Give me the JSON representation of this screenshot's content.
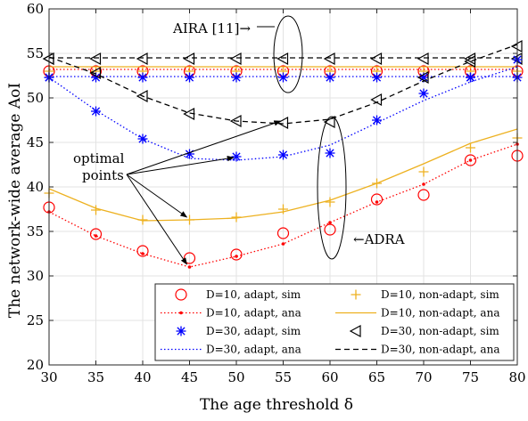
{
  "chart_data": {
    "type": "line",
    "xlabel": "The age threshold δ",
    "ylabel": "The network-wide average AoI",
    "xlim": [
      30,
      80
    ],
    "ylim": [
      20,
      60
    ],
    "grid": true,
    "legend_position": "bottom-right",
    "x_ticks": [
      30,
      35,
      40,
      45,
      50,
      55,
      60,
      65,
      70,
      75,
      80
    ],
    "y_ticks": [
      20,
      25,
      30,
      35,
      40,
      45,
      50,
      55,
      60
    ],
    "x": [
      30,
      35,
      40,
      45,
      50,
      55,
      60,
      65,
      70,
      75,
      80
    ],
    "series": [
      {
        "name": "D=10, adapt, sim",
        "style": "marker",
        "marker": "circle",
        "color": "#ff0000",
        "values": [
          37.7,
          34.7,
          32.8,
          32.0,
          32.4,
          34.8,
          35.2,
          38.6,
          39.1,
          43.0,
          43.5
        ]
      },
      {
        "name": "D=10, non-adapt, sim",
        "style": "marker",
        "marker": "plus",
        "color": "#edb120",
        "values": [
          39.3,
          37.4,
          36.3,
          36.3,
          36.6,
          37.5,
          38.3,
          40.4,
          41.7,
          44.4,
          45.5
        ]
      },
      {
        "name": "D=10, adapt, ana",
        "style": "dotted",
        "marker": "dot",
        "color": "#ff0000",
        "values": [
          37.2,
          34.5,
          32.5,
          31.0,
          32.2,
          33.6,
          36.0,
          38.3,
          40.3,
          43.0,
          44.8
        ]
      },
      {
        "name": "D=10, non-adapt, ana",
        "style": "solid",
        "marker": "none",
        "color": "#edb120",
        "values": [
          39.8,
          37.6,
          36.2,
          36.3,
          36.5,
          37.2,
          38.5,
          40.4,
          42.6,
          44.9,
          46.5
        ]
      },
      {
        "name": "D=30, adapt, sim",
        "style": "marker",
        "marker": "asterisk",
        "color": "#0000ff",
        "values": [
          52.3,
          48.5,
          45.4,
          43.7,
          43.4,
          43.6,
          43.8,
          47.5,
          50.5,
          52.3,
          54.3
        ]
      },
      {
        "name": "D=30, non-adapt, sim",
        "style": "marker",
        "marker": "triangle-left",
        "color": "#000000",
        "values": [
          54.4,
          52.8,
          50.2,
          48.2,
          47.4,
          47.2,
          47.3,
          49.8,
          52.3,
          54.1,
          55.8
        ]
      },
      {
        "name": "D=30, adapt, ana",
        "style": "dotted",
        "marker": "none",
        "color": "#0000ff",
        "values": [
          52.3,
          48.6,
          45.4,
          43.2,
          43.0,
          43.4,
          44.7,
          47.2,
          49.7,
          51.8,
          53.5
        ]
      },
      {
        "name": "D=30, non-adapt, ana",
        "style": "dashed",
        "marker": "none",
        "color": "#000000",
        "values": [
          54.6,
          52.7,
          50.2,
          48.3,
          47.4,
          47.1,
          47.6,
          49.5,
          51.9,
          54.1,
          56.0
        ]
      }
    ],
    "flat_series": [
      {
        "name": "AIRA adapt sim",
        "marker": "circle",
        "color": "#ff0000",
        "value": 53.0
      },
      {
        "name": "AIRA non-adapt sim",
        "marker": "plus",
        "color": "#edb120",
        "value": 53.0
      },
      {
        "name": "AIRA adapt ana",
        "color": "#ff0000",
        "style": "dotted",
        "value": 53.2
      },
      {
        "name": "AIRA non-adapt ana",
        "color": "#edb120",
        "style": "solid",
        "value": 53.5
      },
      {
        "name": "AIRA D30 adapt sim",
        "marker": "asterisk",
        "color": "#0000ff",
        "value": 52.3
      },
      {
        "name": "AIRA D30 adapt ana",
        "color": "#0000ff",
        "style": "dotted",
        "value": 52.4
      },
      {
        "name": "AIRA D30 non-adapt sim",
        "marker": "triangle-left",
        "color": "#000000",
        "value": 54.4
      },
      {
        "name": "AIRA D30 non-adapt ana",
        "color": "#000000",
        "style": "dashed",
        "value": 54.5
      }
    ],
    "annotations": {
      "aira": "AIRA [11]→",
      "adra": "←ADRA",
      "optimal_line1": "optimal",
      "optimal_line2": "points"
    },
    "optimal_points": [
      {
        "x": 45,
        "y": 31.0
      },
      {
        "x": 45,
        "y": 36.3
      },
      {
        "x": 50,
        "y": 43.0
      },
      {
        "x": 55,
        "y": 47.1
      }
    ]
  }
}
